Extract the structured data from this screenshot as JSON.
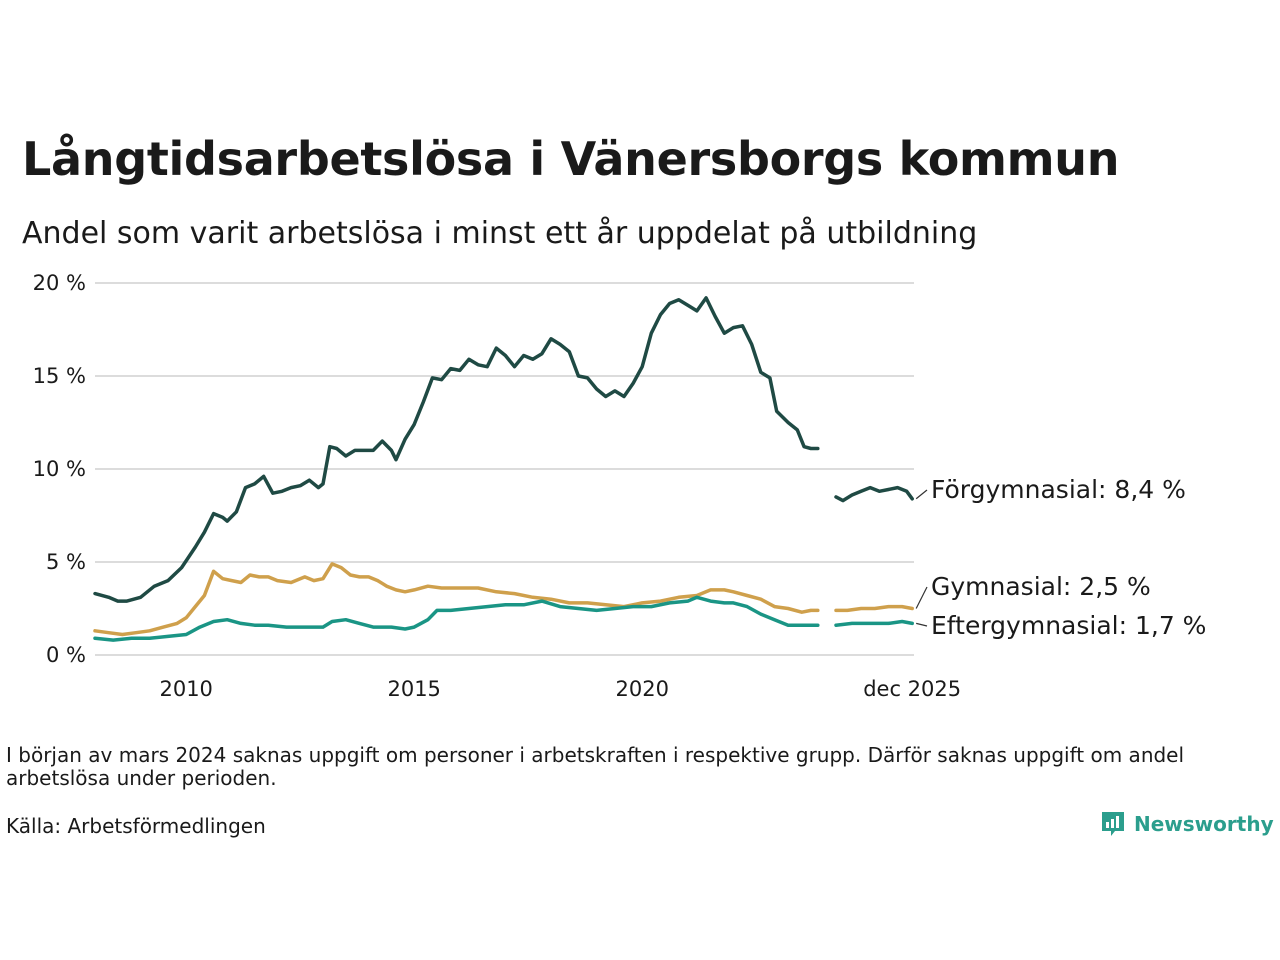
{
  "header": {
    "title": "Långtidsarbetslösa i Vänersborgs kommun",
    "subtitle": "Andel som varit arbetslösa i minst ett år uppdelat på utbildning"
  },
  "footer": {
    "note": "I början av mars 2024 saknas uppgift om personer i arbetskraften i respektive grupp. Därför saknas uppgift om andel arbetslösa under perioden.",
    "source": "Källa: Arbetsförmedlingen",
    "brand": "Newsworthy"
  },
  "chart_data": {
    "type": "line",
    "title": "Långtidsarbetslösa i Vänersborgs kommun",
    "subtitle": "Andel som varit arbetslösa i minst ett år uppdelat på utbildning",
    "xlabel": "",
    "ylabel": "",
    "xlim": [
      2008.0,
      2025.96
    ],
    "ylim": [
      0,
      20
    ],
    "y_ticks": [
      0,
      5,
      10,
      15,
      20
    ],
    "y_tick_labels": [
      "0 %",
      "5 %",
      "10 %",
      "15 %",
      "20 %"
    ],
    "x_ticks": [
      2010,
      2015,
      2020,
      2025.92
    ],
    "x_tick_labels": [
      "2010",
      "2015",
      "2020",
      "dec 2025"
    ],
    "gap": [
      2023.85,
      2024.25
    ],
    "grid": true,
    "series": [
      {
        "name": "Förgymnasial",
        "end_label": "Förgymnasial: 8,4 %",
        "color": "#1f4a44",
        "points": [
          [
            2008.0,
            3.3
          ],
          [
            2008.3,
            3.1
          ],
          [
            2008.5,
            2.9
          ],
          [
            2008.7,
            2.9
          ],
          [
            2009.0,
            3.1
          ],
          [
            2009.3,
            3.7
          ],
          [
            2009.6,
            4.0
          ],
          [
            2009.9,
            4.7
          ],
          [
            2010.2,
            5.8
          ],
          [
            2010.4,
            6.6
          ],
          [
            2010.6,
            7.6
          ],
          [
            2010.8,
            7.4
          ],
          [
            2010.9,
            7.2
          ],
          [
            2011.1,
            7.7
          ],
          [
            2011.3,
            9.0
          ],
          [
            2011.5,
            9.2
          ],
          [
            2011.7,
            9.6
          ],
          [
            2011.9,
            8.7
          ],
          [
            2012.1,
            8.8
          ],
          [
            2012.3,
            9.0
          ],
          [
            2012.5,
            9.1
          ],
          [
            2012.7,
            9.4
          ],
          [
            2012.9,
            9.0
          ],
          [
            2013.0,
            9.2
          ],
          [
            2013.15,
            11.2
          ],
          [
            2013.3,
            11.1
          ],
          [
            2013.5,
            10.7
          ],
          [
            2013.7,
            11.0
          ],
          [
            2013.9,
            11.0
          ],
          [
            2014.1,
            11.0
          ],
          [
            2014.3,
            11.5
          ],
          [
            2014.5,
            11.0
          ],
          [
            2014.6,
            10.5
          ],
          [
            2014.8,
            11.6
          ],
          [
            2015.0,
            12.4
          ],
          [
            2015.2,
            13.6
          ],
          [
            2015.4,
            14.9
          ],
          [
            2015.6,
            14.8
          ],
          [
            2015.8,
            15.4
          ],
          [
            2016.0,
            15.3
          ],
          [
            2016.2,
            15.9
          ],
          [
            2016.4,
            15.6
          ],
          [
            2016.6,
            15.5
          ],
          [
            2016.8,
            16.5
          ],
          [
            2017.0,
            16.1
          ],
          [
            2017.2,
            15.5
          ],
          [
            2017.4,
            16.1
          ],
          [
            2017.6,
            15.9
          ],
          [
            2017.8,
            16.2
          ],
          [
            2018.0,
            17.0
          ],
          [
            2018.2,
            16.7
          ],
          [
            2018.4,
            16.3
          ],
          [
            2018.6,
            15.0
          ],
          [
            2018.8,
            14.9
          ],
          [
            2019.0,
            14.3
          ],
          [
            2019.2,
            13.9
          ],
          [
            2019.4,
            14.2
          ],
          [
            2019.6,
            13.9
          ],
          [
            2019.8,
            14.6
          ],
          [
            2020.0,
            15.5
          ],
          [
            2020.2,
            17.3
          ],
          [
            2020.4,
            18.3
          ],
          [
            2020.6,
            18.9
          ],
          [
            2020.8,
            19.1
          ],
          [
            2021.0,
            18.8
          ],
          [
            2021.2,
            18.5
          ],
          [
            2021.4,
            19.2
          ],
          [
            2021.6,
            18.2
          ],
          [
            2021.8,
            17.3
          ],
          [
            2022.0,
            17.6
          ],
          [
            2022.2,
            17.7
          ],
          [
            2022.4,
            16.7
          ],
          [
            2022.6,
            15.2
          ],
          [
            2022.8,
            14.9
          ],
          [
            2022.95,
            13.1
          ],
          [
            2023.2,
            12.5
          ],
          [
            2023.4,
            12.1
          ],
          [
            2023.55,
            11.2
          ],
          [
            2023.7,
            11.1
          ],
          [
            2023.85,
            11.1
          ],
          [
            2024.25,
            8.5
          ],
          [
            2024.4,
            8.3
          ],
          [
            2024.6,
            8.6
          ],
          [
            2024.8,
            8.8
          ],
          [
            2025.0,
            9.0
          ],
          [
            2025.2,
            8.8
          ],
          [
            2025.4,
            8.9
          ],
          [
            2025.6,
            9.0
          ],
          [
            2025.8,
            8.8
          ],
          [
            2025.92,
            8.4
          ]
        ]
      },
      {
        "name": "Gymnasial",
        "end_label": "Gymnasial: 2,5 %",
        "color": "#cfa04c",
        "points": [
          [
            2008.0,
            1.3
          ],
          [
            2008.3,
            1.2
          ],
          [
            2008.6,
            1.1
          ],
          [
            2008.9,
            1.2
          ],
          [
            2009.2,
            1.3
          ],
          [
            2009.5,
            1.5
          ],
          [
            2009.8,
            1.7
          ],
          [
            2010.0,
            2.0
          ],
          [
            2010.2,
            2.6
          ],
          [
            2010.4,
            3.2
          ],
          [
            2010.6,
            4.5
          ],
          [
            2010.8,
            4.1
          ],
          [
            2011.0,
            4.0
          ],
          [
            2011.2,
            3.9
          ],
          [
            2011.4,
            4.3
          ],
          [
            2011.6,
            4.2
          ],
          [
            2011.8,
            4.2
          ],
          [
            2012.0,
            4.0
          ],
          [
            2012.3,
            3.9
          ],
          [
            2012.6,
            4.2
          ],
          [
            2012.8,
            4.0
          ],
          [
            2013.0,
            4.1
          ],
          [
            2013.2,
            4.9
          ],
          [
            2013.4,
            4.7
          ],
          [
            2013.6,
            4.3
          ],
          [
            2013.8,
            4.2
          ],
          [
            2014.0,
            4.2
          ],
          [
            2014.2,
            4.0
          ],
          [
            2014.4,
            3.7
          ],
          [
            2014.6,
            3.5
          ],
          [
            2014.8,
            3.4
          ],
          [
            2015.0,
            3.5
          ],
          [
            2015.3,
            3.7
          ],
          [
            2015.6,
            3.6
          ],
          [
            2016.0,
            3.6
          ],
          [
            2016.4,
            3.6
          ],
          [
            2016.8,
            3.4
          ],
          [
            2017.2,
            3.3
          ],
          [
            2017.6,
            3.1
          ],
          [
            2018.0,
            3.0
          ],
          [
            2018.4,
            2.8
          ],
          [
            2018.8,
            2.8
          ],
          [
            2019.2,
            2.7
          ],
          [
            2019.6,
            2.6
          ],
          [
            2020.0,
            2.8
          ],
          [
            2020.4,
            2.9
          ],
          [
            2020.8,
            3.1
          ],
          [
            2021.2,
            3.2
          ],
          [
            2021.5,
            3.5
          ],
          [
            2021.8,
            3.5
          ],
          [
            2022.0,
            3.4
          ],
          [
            2022.3,
            3.2
          ],
          [
            2022.6,
            3.0
          ],
          [
            2022.9,
            2.6
          ],
          [
            2023.2,
            2.5
          ],
          [
            2023.5,
            2.3
          ],
          [
            2023.7,
            2.4
          ],
          [
            2023.85,
            2.4
          ],
          [
            2024.25,
            2.4
          ],
          [
            2024.5,
            2.4
          ],
          [
            2024.8,
            2.5
          ],
          [
            2025.1,
            2.5
          ],
          [
            2025.4,
            2.6
          ],
          [
            2025.7,
            2.6
          ],
          [
            2025.92,
            2.5
          ]
        ]
      },
      {
        "name": "Eftergymnasial",
        "end_label": "Eftergymnasial: 1,7 %",
        "color": "#1a9585",
        "points": [
          [
            2008.0,
            0.9
          ],
          [
            2008.4,
            0.8
          ],
          [
            2008.8,
            0.9
          ],
          [
            2009.2,
            0.9
          ],
          [
            2009.6,
            1.0
          ],
          [
            2010.0,
            1.1
          ],
          [
            2010.3,
            1.5
          ],
          [
            2010.6,
            1.8
          ],
          [
            2010.9,
            1.9
          ],
          [
            2011.2,
            1.7
          ],
          [
            2011.5,
            1.6
          ],
          [
            2011.8,
            1.6
          ],
          [
            2012.2,
            1.5
          ],
          [
            2012.6,
            1.5
          ],
          [
            2013.0,
            1.5
          ],
          [
            2013.2,
            1.8
          ],
          [
            2013.5,
            1.9
          ],
          [
            2013.8,
            1.7
          ],
          [
            2014.1,
            1.5
          ],
          [
            2014.5,
            1.5
          ],
          [
            2014.8,
            1.4
          ],
          [
            2015.0,
            1.5
          ],
          [
            2015.3,
            1.9
          ],
          [
            2015.5,
            2.4
          ],
          [
            2015.8,
            2.4
          ],
          [
            2016.2,
            2.5
          ],
          [
            2016.6,
            2.6
          ],
          [
            2017.0,
            2.7
          ],
          [
            2017.4,
            2.7
          ],
          [
            2017.8,
            2.9
          ],
          [
            2018.2,
            2.6
          ],
          [
            2018.6,
            2.5
          ],
          [
            2019.0,
            2.4
          ],
          [
            2019.4,
            2.5
          ],
          [
            2019.8,
            2.6
          ],
          [
            2020.2,
            2.6
          ],
          [
            2020.6,
            2.8
          ],
          [
            2021.0,
            2.9
          ],
          [
            2021.2,
            3.1
          ],
          [
            2021.5,
            2.9
          ],
          [
            2021.8,
            2.8
          ],
          [
            2022.0,
            2.8
          ],
          [
            2022.3,
            2.6
          ],
          [
            2022.6,
            2.2
          ],
          [
            2022.9,
            1.9
          ],
          [
            2023.2,
            1.6
          ],
          [
            2023.5,
            1.6
          ],
          [
            2023.7,
            1.6
          ],
          [
            2023.85,
            1.6
          ],
          [
            2024.25,
            1.6
          ],
          [
            2024.6,
            1.7
          ],
          [
            2025.0,
            1.7
          ],
          [
            2025.4,
            1.7
          ],
          [
            2025.7,
            1.8
          ],
          [
            2025.92,
            1.7
          ]
        ]
      }
    ]
  }
}
